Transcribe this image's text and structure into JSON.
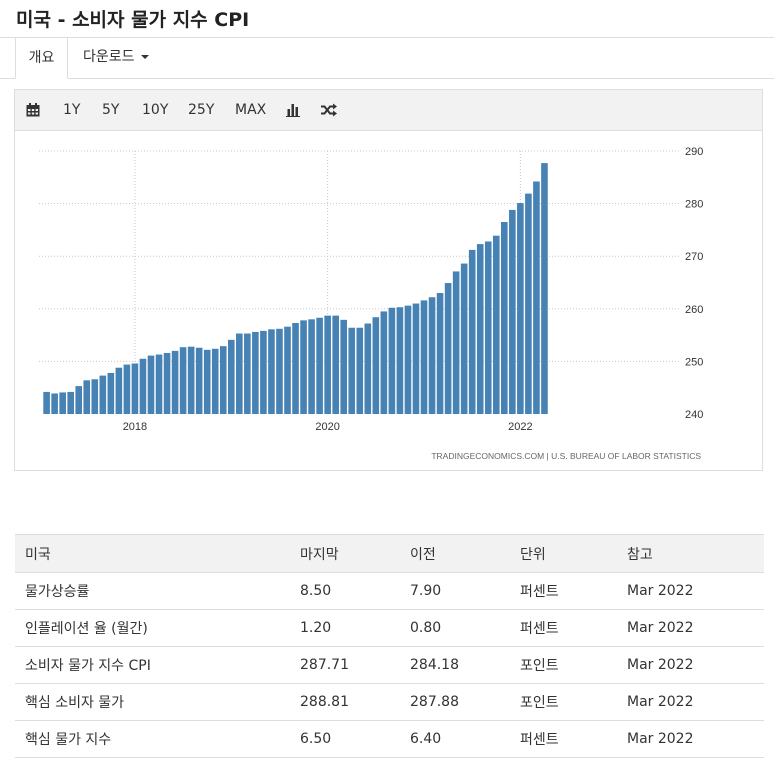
{
  "page": {
    "title": "미국 - 소비자 물가 지수 CPI"
  },
  "tabs": [
    {
      "label": "개요",
      "active": true
    },
    {
      "label": "다운로드"
    }
  ],
  "toolbar": {
    "ranges": [
      "1Y",
      "5Y",
      "10Y",
      "25Y",
      "MAX"
    ],
    "icons": [
      "calendar-icon",
      "bar-chart-icon",
      "shuffle-icon"
    ]
  },
  "chart_data": {
    "type": "bar",
    "color": "#4682b4",
    "x_tick_labels": [
      "2018",
      "2020",
      "2022"
    ],
    "yticks": [
      240,
      250,
      260,
      270,
      280,
      290
    ],
    "ylim": [
      240,
      290
    ],
    "grid": true,
    "y_axis_side": "right",
    "source": "TRADINGECONOMICS.COM  |  U.S. BUREAU OF LABOR STATISTICS",
    "series": [
      {
        "values": [
          244.2,
          243.9,
          244.1,
          244.2,
          245.3,
          246.4,
          246.6,
          247.3,
          247.8,
          248.8,
          249.4,
          249.6,
          250.5,
          251.1,
          251.3,
          251.6,
          252.0,
          252.7,
          252.8,
          252.6,
          252.2,
          252.4,
          252.9,
          254.1,
          255.3,
          255.3,
          255.6,
          255.8,
          256.1,
          256.2,
          256.6,
          257.3,
          257.8,
          258.0,
          258.3,
          258.7,
          258.7,
          257.9,
          256.4,
          256.4,
          257.2,
          258.4,
          259.5,
          260.2,
          260.3,
          260.6,
          261.0,
          261.6,
          262.2,
          263.0,
          264.9,
          267.1,
          268.6,
          271.2,
          272.3,
          272.8,
          273.9,
          276.5,
          278.8,
          280.1,
          281.9,
          284.2,
          287.7
        ]
      }
    ]
  },
  "table": {
    "headers": [
      "미국",
      "마지막",
      "이전",
      "단위",
      "참고"
    ],
    "rows": [
      [
        "물가상승률",
        "8.50",
        "7.90",
        "퍼센트",
        "Mar 2022"
      ],
      [
        "인플레이션 율 (월간)",
        "1.20",
        "0.80",
        "퍼센트",
        "Mar 2022"
      ],
      [
        "소비자 물가 지수 CPI",
        "287.71",
        "284.18",
        "포인트",
        "Mar 2022"
      ],
      [
        "핵심 소비자 물가",
        "288.81",
        "287.88",
        "포인트",
        "Mar 2022"
      ],
      [
        "핵심 물가 지수",
        "6.50",
        "6.40",
        "퍼센트",
        "Mar 2022"
      ]
    ]
  }
}
